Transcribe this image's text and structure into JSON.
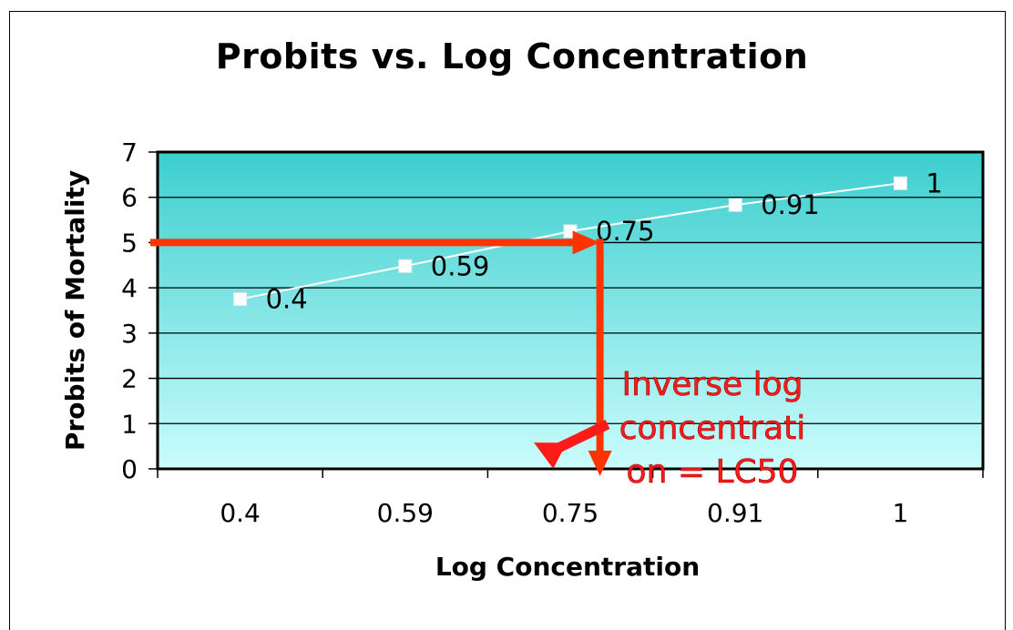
{
  "chart_data": {
    "type": "line",
    "title": "Probits vs. Log Concentration",
    "xlabel": "Log Concentration",
    "ylabel": "Probits of Mortality",
    "categories": [
      "0.4",
      "0.59",
      "0.75",
      "0.91",
      "1"
    ],
    "series": [
      {
        "values": [
          3.75,
          4.48,
          5.25,
          5.83,
          6.31
        ],
        "data_labels": [
          "0.4",
          "0.59",
          "0.75",
          "0.91",
          "1"
        ]
      }
    ],
    "ylim": [
      0,
      7
    ],
    "y_ticks": [
      0,
      1,
      2,
      3,
      4,
      5,
      6,
      7
    ],
    "grid": true,
    "legend": "none",
    "annotation": {
      "lines": [
        "Inverse log",
        "concentrati",
        "on = LC50"
      ],
      "color": "#ff1a1a"
    },
    "lc50_marker": {
      "probit": 5,
      "category_position": 2.68,
      "color": "#ff3300"
    },
    "colors": {
      "plot_top": "#3ccece",
      "plot_bottom": "#cbfcfc",
      "series": "#ffffff"
    }
  }
}
